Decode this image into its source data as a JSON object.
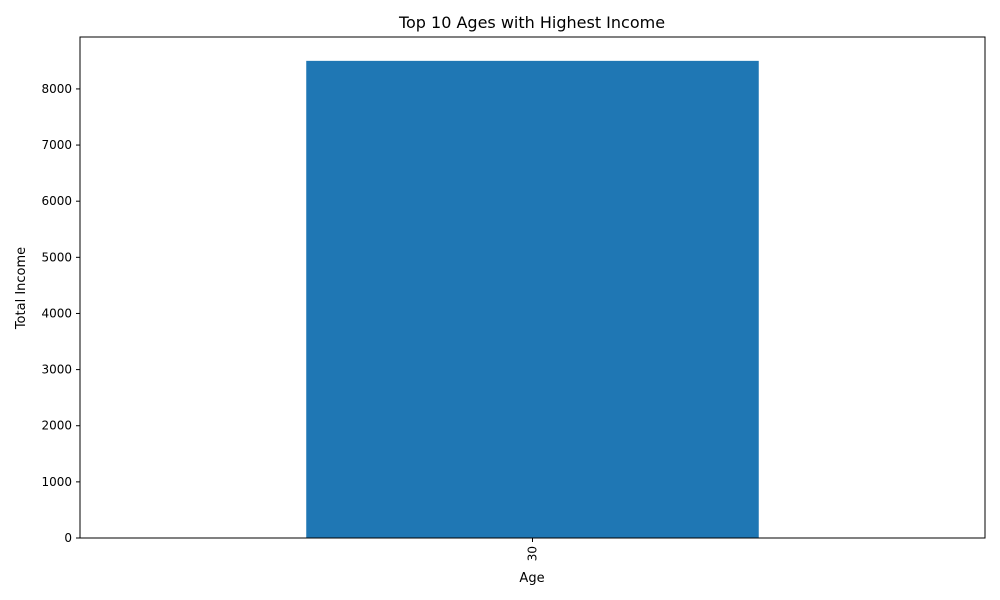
{
  "chart_data": {
    "type": "bar",
    "title": "Top 10 Ages with Highest Income",
    "xlabel": "Age",
    "ylabel": "Total Income",
    "categories": [
      "30"
    ],
    "values": [
      8500
    ],
    "ylim": [
      0,
      8925
    ],
    "yticks": [
      0,
      1000,
      2000,
      3000,
      4000,
      5000,
      6000,
      7000,
      8000
    ],
    "xtick_rotation": "vertical",
    "grid": false,
    "legend": "none",
    "colors": {
      "bar": "#1f77b4",
      "axes": "#000000",
      "background": "#ffffff"
    }
  }
}
